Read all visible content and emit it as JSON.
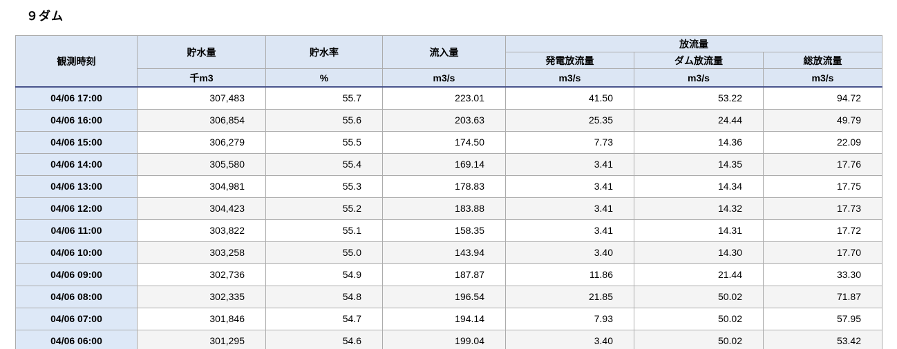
{
  "page_title": "９ダム",
  "table": {
    "header": {
      "time": "観測時刻",
      "storage": "貯水量",
      "storage_rate": "貯水率",
      "inflow": "流入量",
      "outflow_group": "放流量",
      "power_outflow": "発電放流量",
      "dam_outflow": "ダム放流量",
      "total_outflow": "総放流量"
    },
    "units": {
      "storage": "千m3",
      "storage_rate": "%",
      "inflow": "m3/s",
      "power_outflow": "m3/s",
      "dam_outflow": "m3/s",
      "total_outflow": "m3/s"
    },
    "rows": [
      {
        "time": "04/06 17:00",
        "storage": "307,483",
        "rate": "55.7",
        "inflow": "223.01",
        "power": "41.50",
        "dam": "53.22",
        "total": "94.72"
      },
      {
        "time": "04/06 16:00",
        "storage": "306,854",
        "rate": "55.6",
        "inflow": "203.63",
        "power": "25.35",
        "dam": "24.44",
        "total": "49.79"
      },
      {
        "time": "04/06 15:00",
        "storage": "306,279",
        "rate": "55.5",
        "inflow": "174.50",
        "power": "7.73",
        "dam": "14.36",
        "total": "22.09"
      },
      {
        "time": "04/06 14:00",
        "storage": "305,580",
        "rate": "55.4",
        "inflow": "169.14",
        "power": "3.41",
        "dam": "14.35",
        "total": "17.76"
      },
      {
        "time": "04/06 13:00",
        "storage": "304,981",
        "rate": "55.3",
        "inflow": "178.83",
        "power": "3.41",
        "dam": "14.34",
        "total": "17.75"
      },
      {
        "time": "04/06 12:00",
        "storage": "304,423",
        "rate": "55.2",
        "inflow": "183.88",
        "power": "3.41",
        "dam": "14.32",
        "total": "17.73"
      },
      {
        "time": "04/06 11:00",
        "storage": "303,822",
        "rate": "55.1",
        "inflow": "158.35",
        "power": "3.41",
        "dam": "14.31",
        "total": "17.72"
      },
      {
        "time": "04/06 10:00",
        "storage": "303,258",
        "rate": "55.0",
        "inflow": "143.94",
        "power": "3.40",
        "dam": "14.30",
        "total": "17.70"
      },
      {
        "time": "04/06 09:00",
        "storage": "302,736",
        "rate": "54.9",
        "inflow": "187.87",
        "power": "11.86",
        "dam": "21.44",
        "total": "33.30"
      },
      {
        "time": "04/06 08:00",
        "storage": "302,335",
        "rate": "54.8",
        "inflow": "196.54",
        "power": "21.85",
        "dam": "50.02",
        "total": "71.87"
      },
      {
        "time": "04/06 07:00",
        "storage": "301,846",
        "rate": "54.7",
        "inflow": "194.14",
        "power": "7.93",
        "dam": "50.02",
        "total": "57.95"
      },
      {
        "time": "04/06 06:00",
        "storage": "301,295",
        "rate": "54.6",
        "inflow": "199.04",
        "power": "3.40",
        "dam": "50.02",
        "total": "53.42"
      }
    ]
  },
  "colors": {
    "header_bg": "#dce6f4",
    "time_col_bg": "#dde8f7",
    "alt_row_bg": "#f4f4f4",
    "header_separator": "#49548c",
    "grid_border": "#acacac"
  }
}
